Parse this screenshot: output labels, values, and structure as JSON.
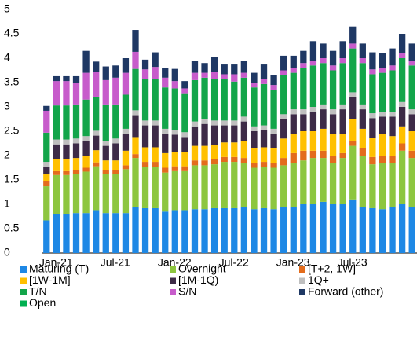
{
  "chart_data": {
    "type": "stacked_bar",
    "categories": [
      "Jan-21",
      null,
      null,
      null,
      null,
      null,
      "Jul-21",
      null,
      null,
      null,
      null,
      null,
      "Jan-22",
      null,
      null,
      null,
      null,
      null,
      "Jul-22",
      null,
      null,
      null,
      null,
      null,
      "Jan-23",
      null,
      null,
      null,
      null,
      null,
      "Jul-23",
      null,
      null,
      null,
      null,
      null,
      null,
      null
    ],
    "ylim": [
      0,
      5
    ],
    "yticks": [
      0,
      0.5,
      1,
      1.5,
      2,
      2.5,
      3,
      3.5,
      4,
      4.5,
      5
    ],
    "series": [
      {
        "name": "Maturing (T)",
        "color": "#1e88e5",
        "values": [
          0.67,
          0.8,
          0.8,
          0.82,
          0.82,
          0.88,
          0.82,
          0.82,
          0.82,
          0.95,
          0.92,
          0.92,
          0.85,
          0.88,
          0.88,
          0.9,
          0.9,
          0.92,
          0.92,
          0.92,
          0.95,
          0.9,
          0.92,
          0.9,
          0.95,
          0.95,
          1.0,
          1.0,
          1.05,
          1.0,
          1.0,
          1.1,
          0.95,
          0.92,
          0.9,
          0.95,
          1.0,
          0.95
        ]
      },
      {
        "name": "Overnight",
        "color": "#8dc63f",
        "values": [
          0.7,
          0.8,
          0.8,
          0.8,
          0.85,
          0.9,
          0.8,
          0.8,
          0.9,
          1.0,
          0.85,
          0.85,
          0.8,
          0.8,
          0.8,
          0.9,
          0.9,
          0.9,
          0.95,
          0.95,
          0.9,
          0.85,
          0.85,
          0.85,
          0.85,
          0.9,
          0.9,
          0.95,
          0.9,
          0.85,
          0.95,
          1.1,
          1.05,
          0.9,
          0.95,
          0.9,
          1.1,
          1.0
        ]
      },
      {
        "name": "[T+2, 1W]",
        "color": "#e36c1c",
        "values": [
          0.1,
          0.08,
          0.08,
          0.08,
          0.08,
          0.08,
          0.08,
          0.08,
          0.08,
          0.08,
          0.1,
          0.1,
          0.1,
          0.1,
          0.1,
          0.1,
          0.1,
          0.1,
          0.1,
          0.1,
          0.1,
          0.1,
          0.1,
          0.1,
          0.15,
          0.2,
          0.2,
          0.15,
          0.15,
          0.15,
          0.1,
          0.1,
          0.15,
          0.15,
          0.15,
          0.15,
          0.15,
          0.15
        ]
      },
      {
        "name": "[1W-1M]",
        "color": "#ffc000",
        "values": [
          0.15,
          0.25,
          0.25,
          0.25,
          0.25,
          0.25,
          0.2,
          0.2,
          0.3,
          0.35,
          0.3,
          0.3,
          0.3,
          0.3,
          0.3,
          0.3,
          0.3,
          0.3,
          0.3,
          0.3,
          0.35,
          0.3,
          0.3,
          0.3,
          0.4,
          0.4,
          0.4,
          0.4,
          0.45,
          0.45,
          0.4,
          0.45,
          0.4,
          0.4,
          0.45,
          0.4,
          0.35,
          0.4
        ]
      },
      {
        "name": "[1M-1Q)",
        "color": "#3d2b47",
        "values": [
          0.15,
          0.3,
          0.3,
          0.3,
          0.3,
          0.3,
          0.3,
          0.35,
          0.35,
          0.45,
          0.45,
          0.45,
          0.4,
          0.35,
          0.3,
          0.4,
          0.45,
          0.4,
          0.35,
          0.35,
          0.4,
          0.35,
          0.35,
          0.3,
          0.4,
          0.4,
          0.35,
          0.4,
          0.4,
          0.4,
          0.5,
          0.45,
          0.4,
          0.4,
          0.35,
          0.4,
          0.4,
          0.35
        ]
      },
      {
        "name": "1Q+",
        "color": "#bfbfbf",
        "values": [
          0.1,
          0.1,
          0.1,
          0.1,
          0.1,
          0.1,
          0.1,
          0.1,
          0.1,
          0.1,
          0.1,
          0.1,
          0.1,
          0.1,
          0.1,
          0.1,
          0.1,
          0.1,
          0.1,
          0.1,
          0.1,
          0.1,
          0.1,
          0.1,
          0.1,
          0.1,
          0.1,
          0.1,
          0.1,
          0.1,
          0.1,
          0.1,
          0.1,
          0.1,
          0.1,
          0.1,
          0.1,
          0.1
        ]
      },
      {
        "name": "T/N",
        "color": "#13a54a",
        "values": [
          0.6,
          0.7,
          0.7,
          0.7,
          0.75,
          0.7,
          0.75,
          0.7,
          0.7,
          0.85,
          0.85,
          0.85,
          0.85,
          0.85,
          0.8,
          0.85,
          0.85,
          0.85,
          0.85,
          0.8,
          0.8,
          0.8,
          0.85,
          0.8,
          0.8,
          0.75,
          0.85,
          0.85,
          0.85,
          0.8,
          0.85,
          0.9,
          0.85,
          0.8,
          0.8,
          0.85,
          0.9,
          0.9
        ]
      },
      {
        "name": "S/N",
        "color": "#c75ccb",
        "values": [
          0.45,
          0.5,
          0.5,
          0.45,
          0.55,
          0.5,
          0.5,
          0.55,
          0.45,
          0.35,
          0.2,
          0.25,
          0.2,
          0.15,
          0.1,
          0.15,
          0.1,
          0.15,
          0.1,
          0.15,
          0.1,
          0.1,
          0.1,
          0.1,
          0.1,
          0.1,
          0.1,
          0.1,
          0.1,
          0.1,
          0.1,
          0.1,
          0.1,
          0.1,
          0.1,
          0.1,
          0.1,
          0.1
        ]
      },
      {
        "name": "Forward (other)",
        "color": "#1f3864",
        "values": [
          0.1,
          0.1,
          0.1,
          0.13,
          0.45,
          0.22,
          0.28,
          0.25,
          0.3,
          0.45,
          0.2,
          0.3,
          0.2,
          0.25,
          0.15,
          0.25,
          0.2,
          0.3,
          0.2,
          0.2,
          0.25,
          0.2,
          0.3,
          0.2,
          0.3,
          0.25,
          0.25,
          0.4,
          0.3,
          0.3,
          0.35,
          0.35,
          0.3,
          0.35,
          0.3,
          0.35,
          0.4,
          0.35
        ]
      },
      {
        "name": "Open",
        "color": "#00b050",
        "values": [
          0,
          0,
          0,
          0,
          0,
          0,
          0,
          0,
          0,
          0,
          0,
          0,
          0,
          0,
          0,
          0,
          0,
          0,
          0,
          0,
          0,
          0,
          0,
          0,
          0,
          0,
          0,
          0,
          0,
          0,
          0,
          0,
          0,
          0,
          0,
          0,
          0,
          0
        ]
      }
    ],
    "legend": "bottom"
  }
}
